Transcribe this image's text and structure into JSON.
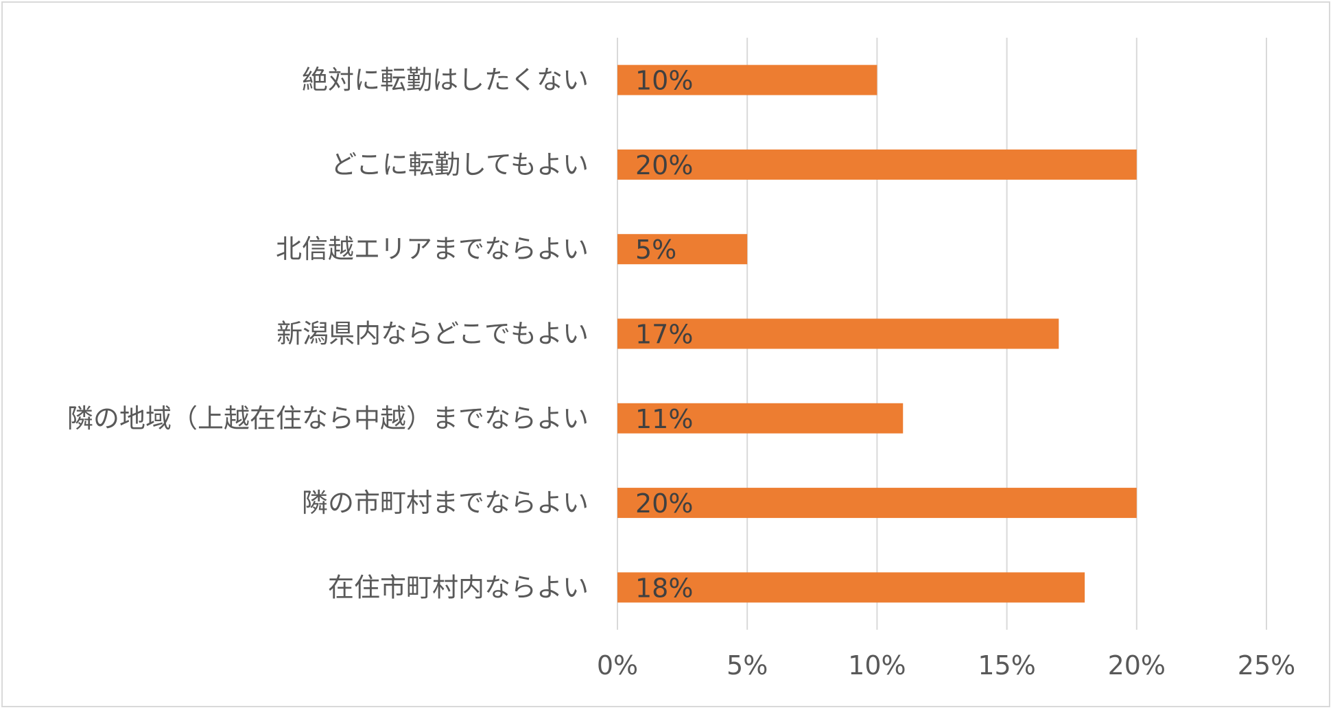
{
  "colors": {
    "bar": "#ED7D31",
    "grid": "#D9D9D9",
    "text": "#595959"
  },
  "chart_data": {
    "type": "bar",
    "orientation": "horizontal",
    "categories": [
      "絶対に転勤はしたくない",
      "どこに転勤してもよい",
      "北信越エリアまでならよい",
      "新潟県内ならどこでもよい",
      "隣の地域（上越在住なら中越）までならよい",
      "隣の市町村までならよい",
      "在住市町村内ならよい"
    ],
    "values": [
      10,
      20,
      5,
      17,
      11,
      20,
      18
    ],
    "data_labels": [
      "10%",
      "20%",
      "5%",
      "17%",
      "11%",
      "20%",
      "18%"
    ],
    "xlim": [
      0,
      25
    ],
    "xticks": [
      0,
      5,
      10,
      15,
      20,
      25
    ],
    "xtick_labels": [
      "0%",
      "5%",
      "10%",
      "15%",
      "20%",
      "25%"
    ],
    "title": "",
    "xlabel": "",
    "ylabel": "",
    "grid": true,
    "legend": "none"
  }
}
